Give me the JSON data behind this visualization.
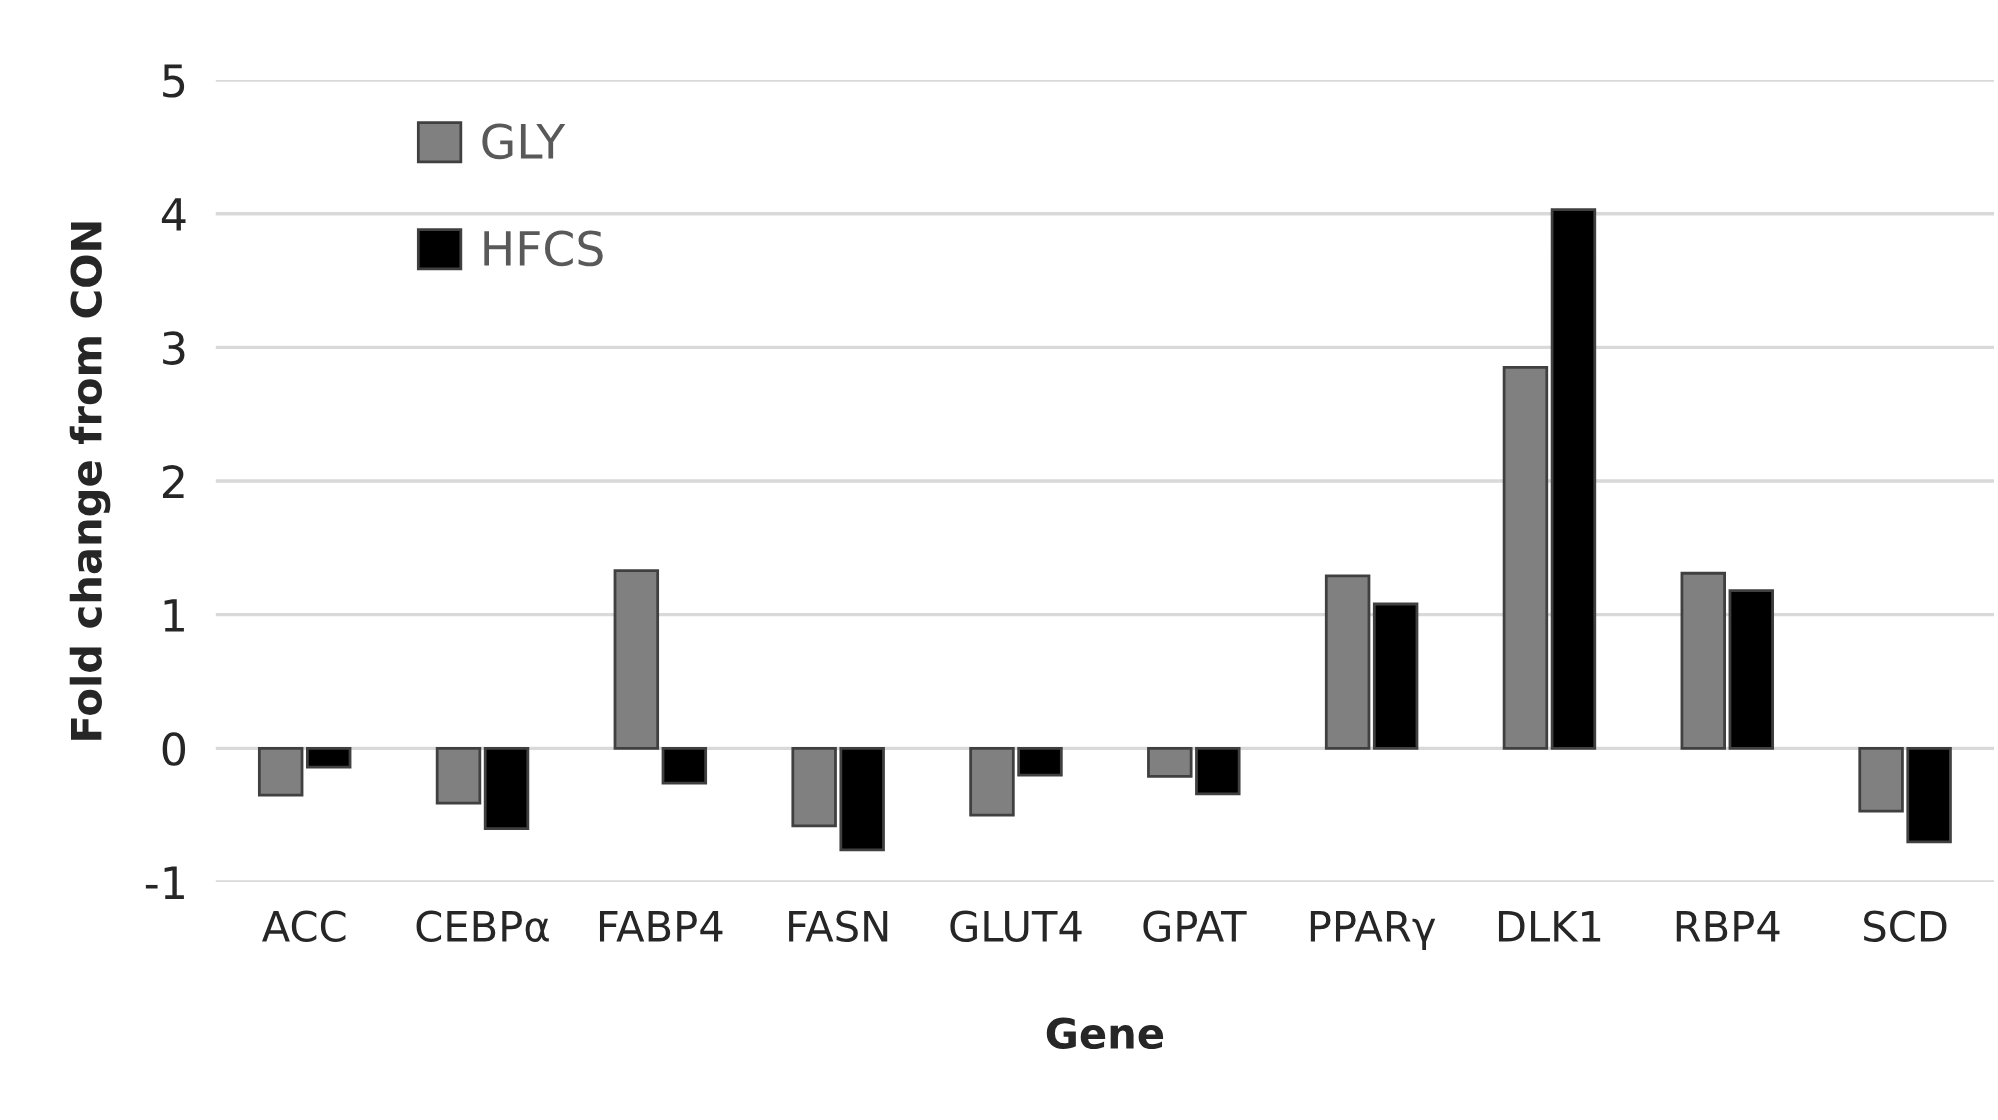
{
  "chart_data": {
    "type": "bar",
    "xlabel": "Gene",
    "ylabel": "Fold change from CON",
    "categories": [
      "ACC",
      "CEBPα",
      "FABP4",
      "FASN",
      "GLUT4",
      "GPAT",
      "PPARγ",
      "DLK1",
      "RBP4",
      "SCD"
    ],
    "series": [
      {
        "name": "GLY",
        "color": "#808080",
        "values": [
          -0.35,
          -0.41,
          1.33,
          -0.58,
          -0.5,
          -0.21,
          1.29,
          2.85,
          1.31,
          -0.47
        ]
      },
      {
        "name": "HFCS",
        "color": "#000000",
        "values": [
          -0.14,
          -0.6,
          -0.26,
          -0.76,
          -0.2,
          -0.34,
          1.08,
          4.03,
          1.18,
          -0.7
        ]
      }
    ],
    "ylim": [
      -1,
      5
    ],
    "yticks": [
      -1,
      0,
      1,
      2,
      3,
      4,
      5
    ],
    "grid": "y",
    "legend": "top left"
  }
}
